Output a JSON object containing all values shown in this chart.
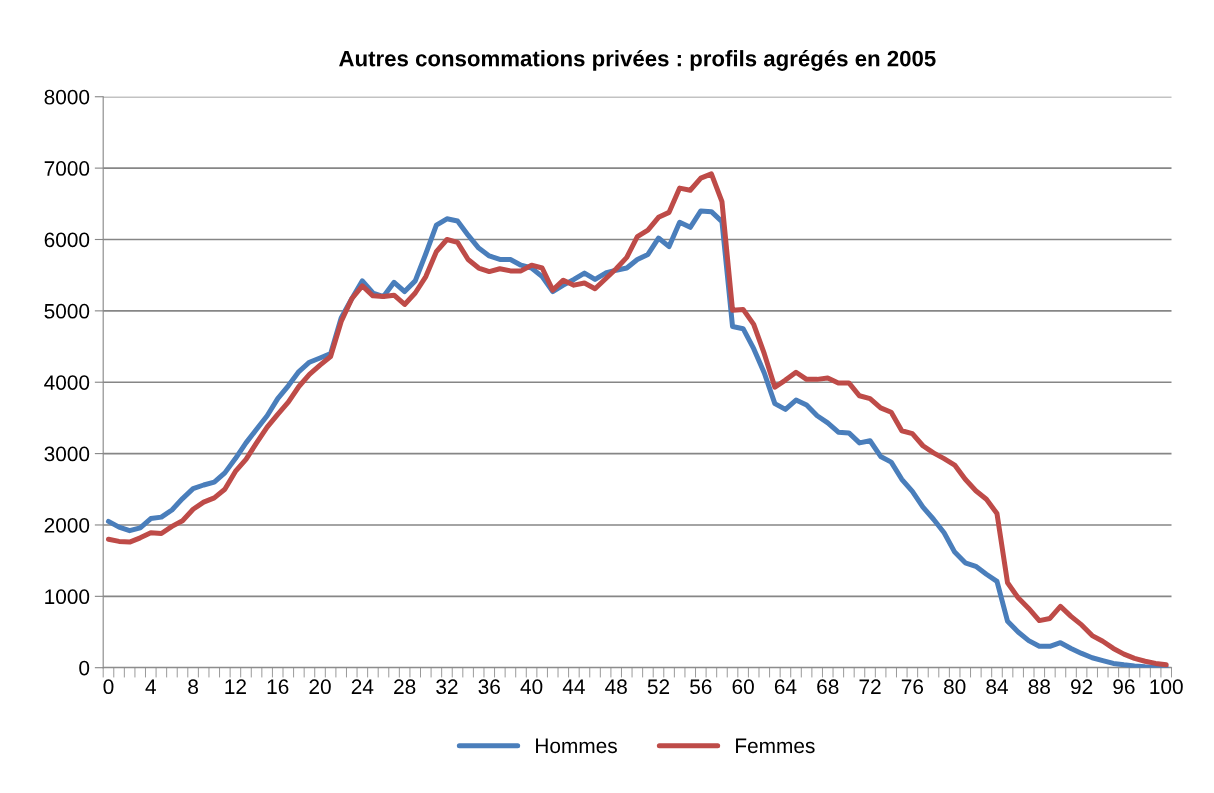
{
  "chart_data": {
    "type": "line",
    "title": "Autres consommations privées : profils agrégés en 2005",
    "categories": [
      "0",
      null,
      null,
      null,
      "4",
      null,
      null,
      null,
      "8",
      null,
      null,
      null,
      "12",
      null,
      null,
      null,
      "16",
      null,
      null,
      null,
      "20",
      null,
      null,
      null,
      "24",
      null,
      null,
      null,
      "28",
      null,
      null,
      null,
      "32",
      null,
      null,
      null,
      "36",
      null,
      null,
      null,
      "40",
      null,
      null,
      null,
      "44",
      null,
      null,
      null,
      "48",
      null,
      null,
      null,
      "52",
      null,
      null,
      null,
      "56",
      null,
      null,
      null,
      "60",
      null,
      null,
      null,
      "64",
      null,
      null,
      null,
      "68",
      null,
      null,
      null,
      "72",
      null,
      null,
      null,
      "76",
      null,
      null,
      null,
      "80",
      null,
      null,
      null,
      "84",
      null,
      null,
      null,
      "88",
      null,
      null,
      null,
      "92",
      null,
      null,
      null,
      "96",
      null,
      null,
      null,
      "100"
    ],
    "series": [
      {
        "name": "Hommes",
        "color": "#4a7ebb",
        "values": [
          2050,
          1970,
          1920,
          1960,
          2090,
          2110,
          2210,
          2370,
          2510,
          2560,
          2600,
          2730,
          2930,
          3150,
          3340,
          3530,
          3770,
          3950,
          4150,
          4280,
          4340,
          4400,
          4900,
          5170,
          5420,
          5250,
          5200,
          5400,
          5270,
          5420,
          5800,
          6200,
          6290,
          6260,
          6060,
          5880,
          5770,
          5720,
          5720,
          5640,
          5600,
          5480,
          5270,
          5360,
          5440,
          5530,
          5440,
          5530,
          5570,
          5600,
          5720,
          5790,
          6020,
          5900,
          6240,
          6170,
          6400,
          6390,
          6250,
          4780,
          4750,
          4470,
          4130,
          3700,
          3620,
          3750,
          3680,
          3530,
          3430,
          3300,
          3290,
          3150,
          3180,
          2960,
          2880,
          2640,
          2470,
          2250,
          2080,
          1890,
          1620,
          1470,
          1420,
          1310,
          1210,
          650,
          500,
          380,
          300,
          300,
          350,
          270,
          200,
          140,
          100,
          60,
          40,
          25,
          15,
          10,
          5
        ]
      },
      {
        "name": "Femmes",
        "color": "#be4b48",
        "values": [
          1800,
          1770,
          1760,
          1820,
          1890,
          1880,
          1980,
          2060,
          2220,
          2320,
          2380,
          2500,
          2750,
          2920,
          3150,
          3370,
          3550,
          3720,
          3940,
          4110,
          4240,
          4360,
          4850,
          5170,
          5350,
          5210,
          5200,
          5220,
          5090,
          5250,
          5480,
          5830,
          6000,
          5960,
          5720,
          5600,
          5550,
          5590,
          5560,
          5560,
          5640,
          5600,
          5290,
          5430,
          5360,
          5390,
          5310,
          5450,
          5590,
          5750,
          6040,
          6130,
          6310,
          6380,
          6720,
          6690,
          6860,
          6920,
          6530,
          5010,
          5020,
          4810,
          4400,
          3930,
          4030,
          4140,
          4040,
          4040,
          4060,
          3990,
          3990,
          3810,
          3770,
          3640,
          3580,
          3320,
          3280,
          3110,
          3010,
          2930,
          2840,
          2640,
          2480,
          2360,
          2160,
          1190,
          980,
          830,
          660,
          690,
          860,
          720,
          600,
          450,
          370,
          270,
          190,
          130,
          90,
          60,
          40
        ]
      }
    ],
    "ylim": [
      0,
      8000
    ],
    "yticks": [
      0,
      1000,
      2000,
      3000,
      4000,
      5000,
      6000,
      7000,
      8000
    ],
    "grid": "y",
    "legend": "bottom",
    "marker": "none",
    "line_style": "solid"
  }
}
